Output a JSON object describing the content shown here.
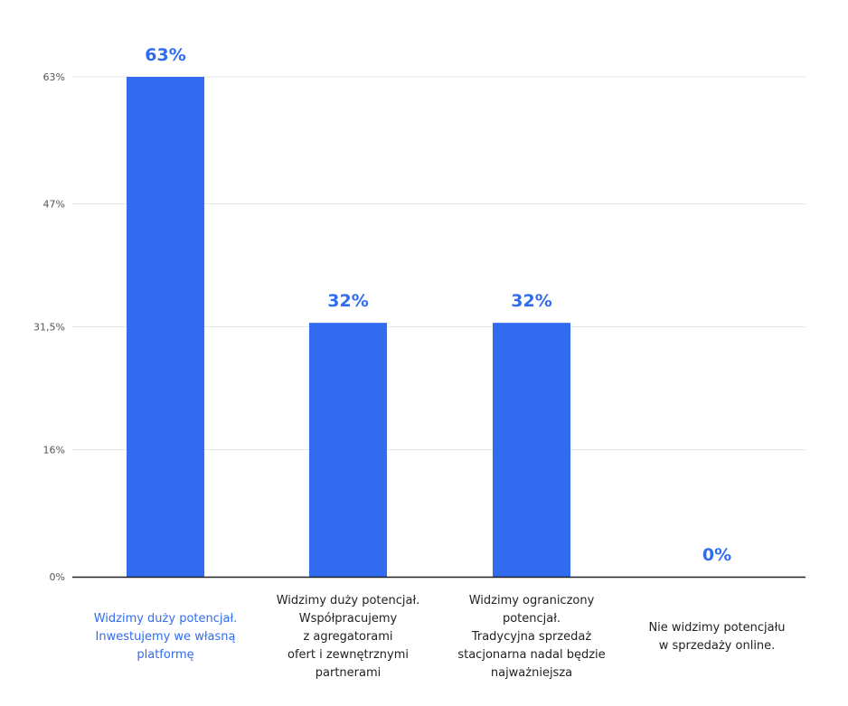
{
  "colors": {
    "bar": "#316cf0",
    "value_label": "#316cf0",
    "active_category": "#316cf0",
    "category_text": "#222222",
    "grid": "#e6e6e6",
    "axis": "#222222",
    "tick_text": "#555555"
  },
  "chart_data": {
    "type": "bar",
    "title": "",
    "xlabel": "",
    "ylabel": "",
    "ylim": [
      0,
      63
    ],
    "yticks": [
      0,
      16,
      31.5,
      47,
      63
    ],
    "ytick_labels": [
      "0%",
      "16%",
      "31,5%",
      "47%",
      "63%"
    ],
    "grid": true,
    "categories": [
      "Widzimy duży potencjał.\nInwestujemy we własną\nplatformę",
      "Widzimy duży potencjał.\nWspółpracujemy\nz agregatorami\nofert i zewnętrznymi\npartnerami",
      "Widzimy ograniczony\npotencjał.\nTradycyjna sprzedaż\nstacjonarna nadal będzie\nnajważniejsza",
      "Nie widzimy potencjału\nw sprzedaży online."
    ],
    "values": [
      63,
      32,
      32,
      0
    ],
    "value_labels": [
      "63%",
      "32%",
      "32%",
      "0%"
    ],
    "highlighted_category": 0
  }
}
